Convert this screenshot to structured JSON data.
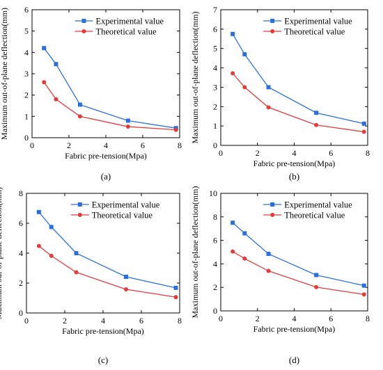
{
  "colors": {
    "experimental": "#2a6fdb",
    "theoretical": "#e03c3c",
    "axis": "#000000"
  },
  "chart_data": [
    {
      "type": "line",
      "panel_label": "(a)",
      "xlabel": "Fabric pre-tension(Mpa)",
      "ylabel": "Maximum out-of-plane deflection(mm)",
      "xlim": [
        0,
        8
      ],
      "ylim": [
        0,
        6
      ],
      "xticks": [
        "0",
        "2",
        "4",
        "6",
        "8"
      ],
      "yticks": [
        "0",
        "1",
        "2",
        "3",
        "4",
        "5",
        "6"
      ],
      "legend_position": "top-right",
      "x": [
        0.65,
        1.3,
        2.6,
        5.2,
        7.8
      ],
      "series": [
        {
          "name": "Experimental value",
          "marker": "square",
          "values": [
            4.2,
            3.45,
            1.55,
            0.8,
            0.45
          ]
        },
        {
          "name": "Theoretical value",
          "marker": "circle",
          "values": [
            2.6,
            1.8,
            1.0,
            0.52,
            0.37
          ]
        }
      ]
    },
    {
      "type": "line",
      "panel_label": "(b)",
      "xlabel": "Fabric pre-tension(Mpa)",
      "ylabel": "Maximum out-of-plane deflection(mm)",
      "xlim": [
        0,
        8
      ],
      "ylim": [
        0,
        7
      ],
      "xticks": [
        "0",
        "2",
        "4",
        "6",
        "8"
      ],
      "yticks": [
        "0",
        "1",
        "2",
        "3",
        "4",
        "5",
        "6",
        "7"
      ],
      "legend_position": "top-right",
      "x": [
        0.65,
        1.3,
        2.6,
        5.2,
        7.8
      ],
      "series": [
        {
          "name": "Experimental value",
          "marker": "square",
          "values": [
            5.75,
            4.7,
            3.0,
            1.68,
            1.12
          ]
        },
        {
          "name": "Theoretical value",
          "marker": "circle",
          "values": [
            3.72,
            3.0,
            1.96,
            1.05,
            0.7
          ]
        }
      ]
    },
    {
      "type": "line",
      "panel_label": "(c)",
      "xlabel": "Fabric pre-tension(Mpa)",
      "ylabel": "Maximum out-of-plane deflection(mm)",
      "xlim": [
        0,
        8
      ],
      "ylim": [
        0,
        8
      ],
      "xticks": [
        "0",
        "2",
        "4",
        "6",
        "8"
      ],
      "yticks": [
        "0",
        "2",
        "4",
        "6",
        "8"
      ],
      "legend_position": "top-right",
      "x": [
        0.65,
        1.3,
        2.6,
        5.2,
        7.8
      ],
      "series": [
        {
          "name": "Experimental value",
          "marker": "square",
          "values": [
            6.75,
            5.75,
            4.0,
            2.42,
            1.68
          ]
        },
        {
          "name": "Theoretical value",
          "marker": "circle",
          "values": [
            4.48,
            3.82,
            2.72,
            1.58,
            1.06
          ]
        }
      ]
    },
    {
      "type": "line",
      "panel_label": "(d)",
      "xlabel": "Fabric pre-tension(Mpa)",
      "ylabel": "Maximum out-of-plane deflection(mm)",
      "xlim": [
        0,
        8
      ],
      "ylim": [
        0,
        10
      ],
      "xticks": [
        "0",
        "2",
        "4",
        "6",
        "8"
      ],
      "yticks": [
        "0",
        "2",
        "4",
        "6",
        "8",
        "10"
      ],
      "legend_position": "top-right",
      "x": [
        0.65,
        1.3,
        2.6,
        5.2,
        7.8
      ],
      "series": [
        {
          "name": "Experimental value",
          "marker": "square",
          "values": [
            7.5,
            6.6,
            4.85,
            3.05,
            2.15
          ]
        },
        {
          "name": "Theoretical value",
          "marker": "circle",
          "values": [
            5.05,
            4.45,
            3.4,
            2.02,
            1.4
          ]
        }
      ]
    }
  ]
}
